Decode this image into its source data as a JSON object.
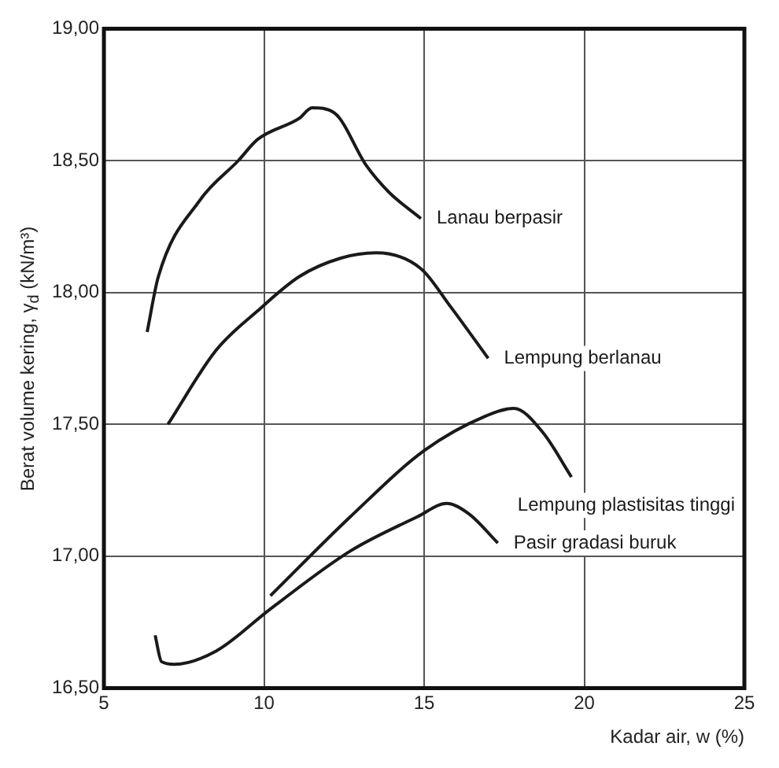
{
  "chart_data": {
    "type": "line",
    "xlabel": "Kadar air, w (%)",
    "ylabel": "Berat volume kering, γ$_{d}$ (kN/m³)",
    "xlim": [
      5,
      25
    ],
    "xticks": [
      5,
      10,
      15,
      20,
      25
    ],
    "ylim": [
      16.5,
      19
    ],
    "yticks": [
      {
        "value": 16.5,
        "label": "16,50"
      },
      {
        "value": 17,
        "label": "17,00"
      },
      {
        "value": 17.5,
        "label": "17,50"
      },
      {
        "value": 18,
        "label": "18,00"
      },
      {
        "value": 18.5,
        "label": "18,50"
      },
      {
        "value": 19,
        "label": "19,00"
      }
    ],
    "grid": true,
    "legend": false,
    "marker": "none",
    "line_style": "solid",
    "series": [
      {
        "name": "Lanau berpasir",
        "color": "#1a1a1a",
        "x": [
          6.35,
          6.7,
          8.0,
          9.2,
          9.8,
          11.1,
          11.5,
          12.2,
          13.2,
          13.9,
          14.9
        ],
        "values": [
          17.85,
          18.06,
          18.35,
          18.5,
          18.58,
          18.66,
          18.7,
          18.68,
          18.48,
          18.38,
          18.28
        ]
      },
      {
        "name": "Lempung berlanau",
        "color": "#1a1a1a",
        "x": [
          7.0,
          8.5,
          9.8,
          11.1,
          12.4,
          13.5,
          14.9,
          15.8,
          17.0
        ],
        "values": [
          17.5,
          17.78,
          17.93,
          18.06,
          18.13,
          18.15,
          18.09,
          17.95,
          17.75
        ]
      },
      {
        "name": "Lempung plastisitas tinggi",
        "color": "#1a1a1a",
        "x": [
          10.2,
          12.7,
          15.0,
          16.9,
          17.8,
          18.7,
          19.6
        ],
        "values": [
          16.85,
          17.15,
          17.4,
          17.53,
          17.56,
          17.47,
          17.3
        ]
      },
      {
        "name": "Pasir gradasi buruk",
        "color": "#1a1a1a",
        "x": [
          6.6,
          6.8,
          7.2,
          8.5,
          10.2,
          12.7,
          14.8,
          15.7,
          16.4,
          17.3
        ],
        "values": [
          16.7,
          16.6,
          16.59,
          16.64,
          16.8,
          17.02,
          17.15,
          17.2,
          17.16,
          17.05
        ]
      }
    ]
  }
}
